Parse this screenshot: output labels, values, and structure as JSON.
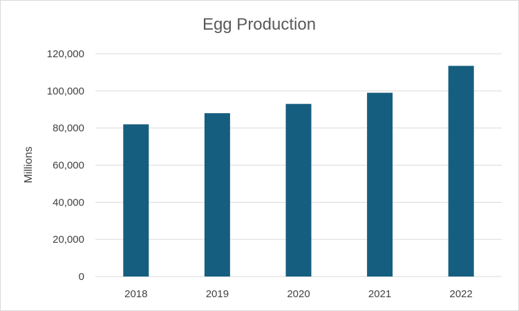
{
  "chart_data": {
    "type": "bar",
    "title": "Egg Production",
    "xlabel": "",
    "ylabel": "Millions",
    "categories": [
      "2018",
      "2019",
      "2020",
      "2021",
      "2022"
    ],
    "values": [
      82000,
      88000,
      93000,
      99000,
      113500
    ],
    "ylim": [
      0,
      120000
    ],
    "yticks": [
      0,
      20000,
      40000,
      60000,
      80000,
      100000,
      120000
    ],
    "ytick_labels": [
      "0",
      "20,000",
      "40,000",
      "60,000",
      "80,000",
      "100,000",
      "120,000"
    ],
    "grid": true,
    "legend": "none",
    "bar_color": "#165e7f",
    "grid_color": "#d9d9d9"
  }
}
